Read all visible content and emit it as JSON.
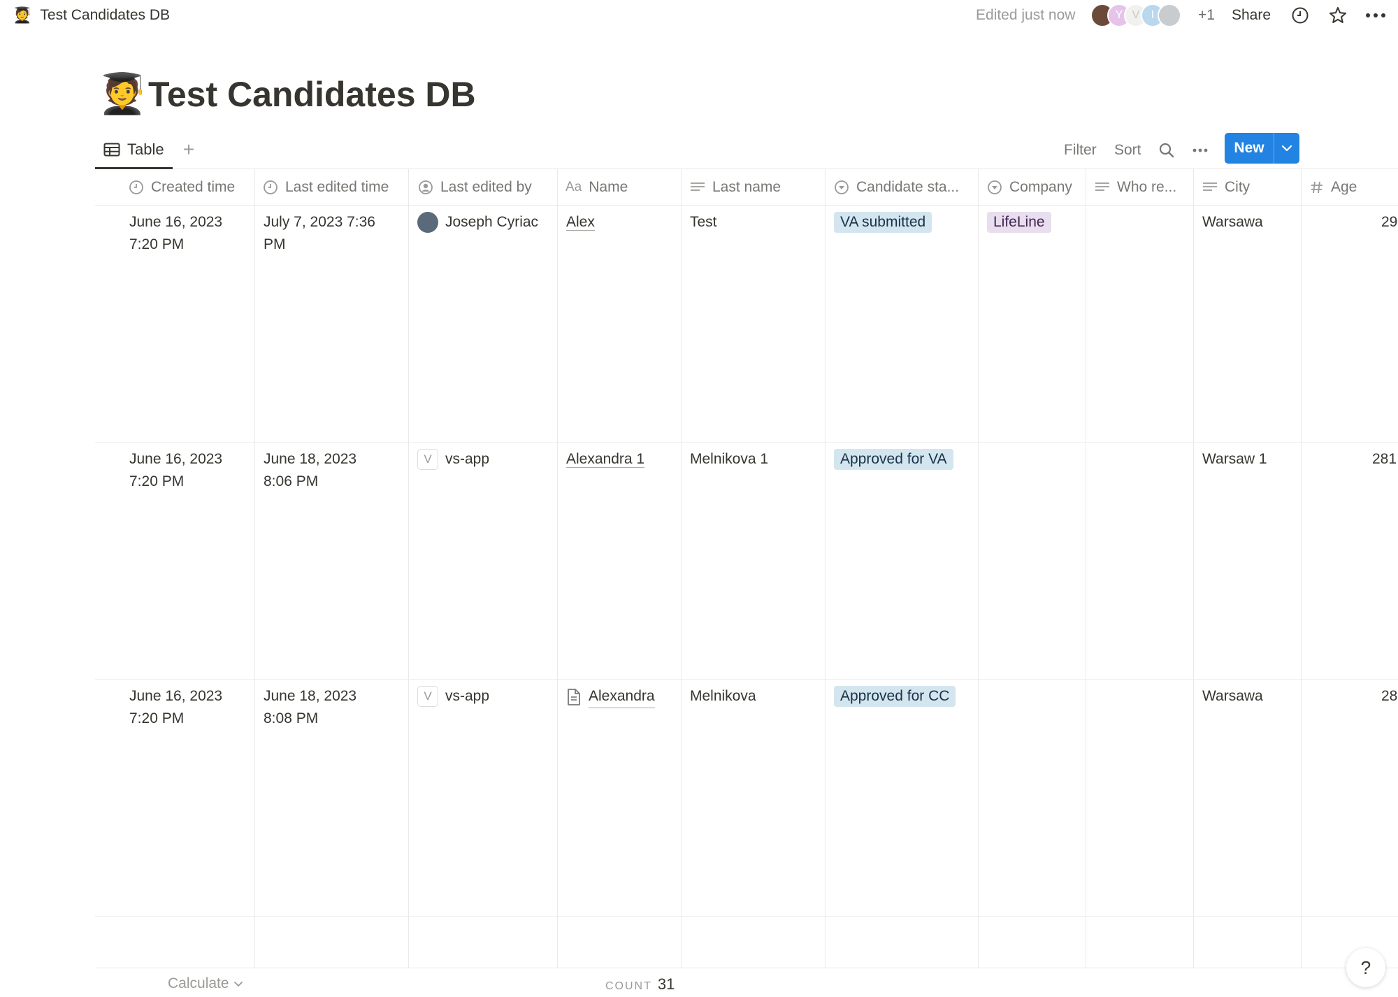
{
  "topbar": {
    "crumb_emoji": "🧑‍🎓",
    "crumb_title": "Test Candidates DB",
    "edited": "Edited just now",
    "avatars": [
      "",
      "Y",
      "V",
      "I",
      ""
    ],
    "plus_count": "+1",
    "share_label": "Share",
    "icons": [
      "clock-icon",
      "star-icon",
      "more-icon"
    ]
  },
  "page": {
    "emoji": "🧑‍🎓",
    "title": "Test Candidates DB"
  },
  "viewbar": {
    "tab_label": "Table",
    "add_label": "+",
    "filter_label": "Filter",
    "sort_label": "Sort",
    "new_label": "New"
  },
  "table": {
    "headers": {
      "created": "Created time",
      "edited": "Last edited time",
      "edited_by": "Last edited by",
      "name_prefix": "Aa",
      "name": "Name",
      "last_name": "Last name",
      "status": "Candidate sta...",
      "company": "Company",
      "who": "Who re...",
      "city": "City",
      "age": "Age"
    },
    "rows": [
      {
        "created_1": "June 16, 2023",
        "created_2": "7:20 PM",
        "edited_1": "July 7, 2023 7:36",
        "edited_2": "PM",
        "edited_by": "Joseph Cyriac",
        "name": "Alex",
        "last_name": "Test",
        "status": "VA submitted",
        "company": "LifeLine",
        "who": "",
        "city": "Warsawa",
        "age": "29"
      },
      {
        "created_1": "June 16, 2023",
        "created_2": "7:20 PM",
        "edited_1": "June 18, 2023",
        "edited_2": "8:06 PM",
        "edited_by_initial": "V",
        "edited_by": "vs-app",
        "name": "Alexandra 1",
        "last_name": "Melnikova 1",
        "status": "Approved for VA",
        "company": "",
        "who": "",
        "city": "Warsaw 1",
        "age": "281"
      },
      {
        "created_1": "June 16, 2023",
        "created_2": "7:20 PM",
        "edited_1": "June 18, 2023",
        "edited_2": "8:08 PM",
        "edited_by_initial": "V",
        "edited_by": "vs-app",
        "name": "Alexandra",
        "last_name": "Melnikova",
        "status": "Approved for CC",
        "company": "",
        "who": "",
        "city": "Warsawa",
        "age": "28"
      }
    ]
  },
  "footer": {
    "calculate_label": "Calculate",
    "count_key": "COUNT",
    "count_value": "31"
  },
  "help_label": "?",
  "colors": {
    "accent": "#2383e2",
    "tag_blue_bg": "#d3e5ef",
    "tag_purple_bg": "#e8deee",
    "text": "#37352f",
    "muted": "#787774"
  }
}
